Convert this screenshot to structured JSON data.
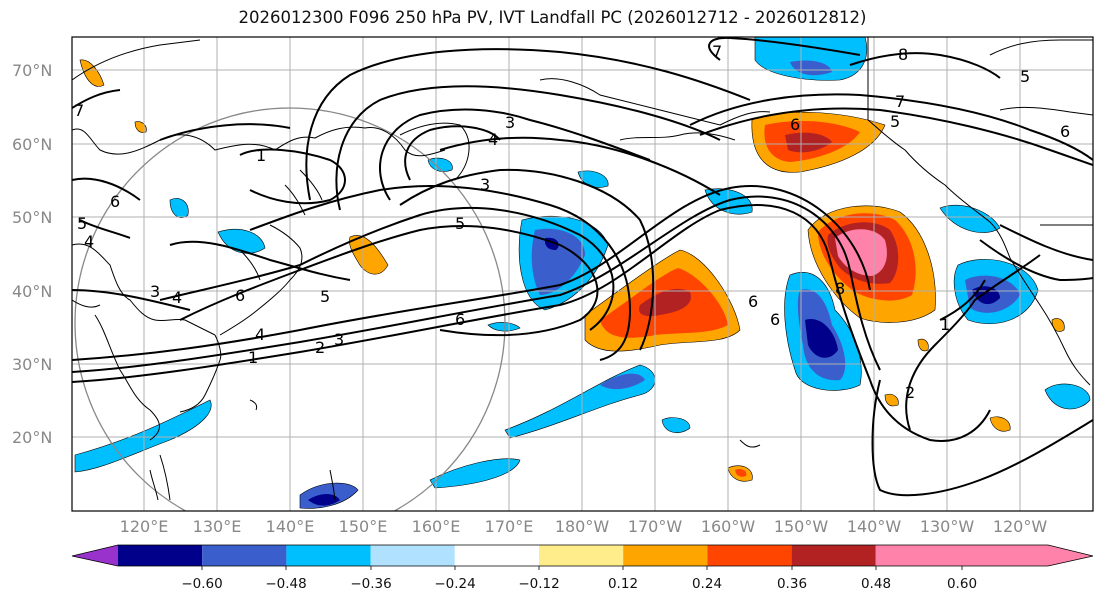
{
  "title": "2026012300 F096 250 hPa PV, IVT Landfall PC (2026012712 - 2026012812)",
  "lat_labels": [
    "70°N",
    "60°N",
    "50°N",
    "40°N",
    "30°N",
    "20°N"
  ],
  "lon_labels": [
    "120°E",
    "130°E",
    "140°E",
    "150°E",
    "160°E",
    "170°E",
    "180°W",
    "170°W",
    "160°W",
    "150°W",
    "140°W",
    "130°W",
    "120°W"
  ],
  "colorbar": {
    "ticks": [
      "−0.60",
      "−0.48",
      "−0.36",
      "−0.24",
      "−0.12",
      "0.12",
      "0.24",
      "0.36",
      "0.48",
      "0.60"
    ],
    "colors": [
      "#9932cc",
      "#00008b",
      "#3a5fcd",
      "#00bfff",
      "#b0e2ff",
      "#ffffff",
      "#ffec8b",
      "#ffa500",
      "#ff4500",
      "#b22222",
      "#ff82ab"
    ]
  },
  "contour_labels": [
    "7",
    "3",
    "4",
    "1",
    "6",
    "3",
    "5",
    "5",
    "6",
    "6",
    "6",
    "4",
    "3",
    "2",
    "1",
    "5",
    "6",
    "7",
    "8",
    "7",
    "5",
    "6",
    "8",
    "2",
    "1",
    "6",
    "4",
    "5",
    "3",
    "4"
  ]
}
